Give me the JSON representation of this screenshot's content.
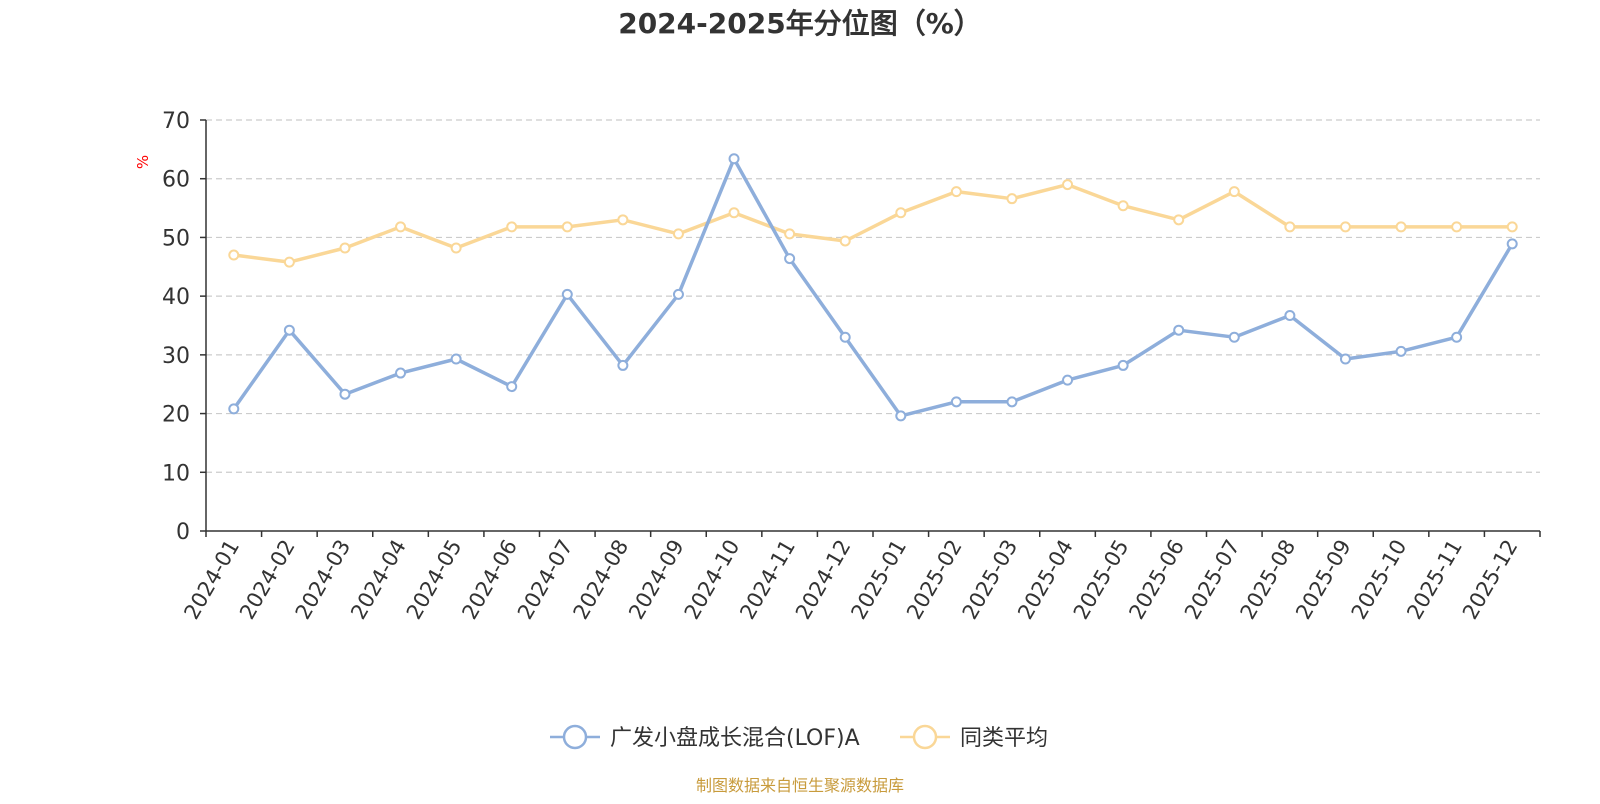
{
  "chart_data": {
    "type": "line",
    "title": "2024-2025年分位图（%）",
    "ylabel": "%",
    "xlabel": "",
    "ylim": [
      0,
      70
    ],
    "yticks": [
      0,
      10,
      20,
      30,
      40,
      50,
      60,
      70
    ],
    "grid": true,
    "legend_position": "bottom-center",
    "categories": [
      "2024-01",
      "2024-02",
      "2024-03",
      "2024-04",
      "2024-05",
      "2024-06",
      "2024-07",
      "2024-08",
      "2024-09",
      "2024-10",
      "2024-11",
      "2024-12",
      "2025-01",
      "2025-02",
      "2025-03",
      "2025-04",
      "2025-05",
      "2025-06",
      "2025-07",
      "2025-08",
      "2025-09",
      "2025-10",
      "2025-11",
      "2025-12"
    ],
    "series": [
      {
        "name": "广发小盘成长混合(LOF)A",
        "color": "#8eaedb",
        "values": [
          20.8,
          34.2,
          23.3,
          26.9,
          29.3,
          24.6,
          40.3,
          28.2,
          40.3,
          63.4,
          46.4,
          33.0,
          19.6,
          22.0,
          22.0,
          25.7,
          28.2,
          34.2,
          33.0,
          36.7,
          29.3,
          30.6,
          33.0,
          48.9
        ]
      },
      {
        "name": "同类平均",
        "color": "#fad797",
        "values": [
          47.0,
          45.8,
          48.2,
          51.8,
          48.2,
          51.8,
          51.8,
          53.0,
          50.6,
          54.2,
          50.6,
          49.4,
          54.2,
          57.8,
          56.6,
          59.0,
          55.4,
          53.0,
          57.8,
          51.8,
          51.8,
          51.8,
          51.8,
          51.8
        ]
      }
    ]
  },
  "colors": {
    "axis": "#333333",
    "grid": "#cccccc",
    "tick_text": "#333333",
    "title": "#333333",
    "ylabel": "#ff0000",
    "source": "#c89b3c"
  },
  "source": "制图数据来自恒生聚源数据库"
}
